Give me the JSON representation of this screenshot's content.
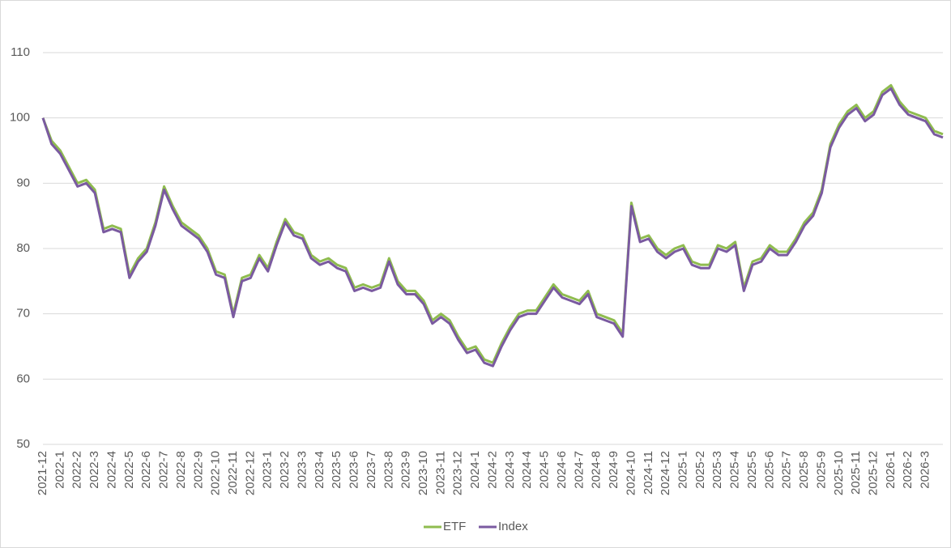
{
  "chart_data": {
    "type": "line",
    "categories": [
      "2021-12",
      null,
      "2022-1",
      null,
      "2022-2",
      null,
      "2022-3",
      null,
      "2022-4",
      null,
      "2022-5",
      null,
      "2022-6",
      null,
      "2022-7",
      null,
      "2022-8",
      null,
      "2022-9",
      null,
      "2022-10",
      null,
      "2022-11",
      null,
      "2022-12",
      null,
      "2023-1",
      null,
      "2023-2",
      null,
      "2023-3",
      null,
      "2023-4",
      null,
      "2023-5",
      null,
      "2023-6",
      null,
      "2023-7",
      null,
      "2023-8",
      null,
      "2023-9",
      null,
      "2023-10",
      null,
      "2023-11",
      null,
      "2023-12",
      null,
      "2024-1",
      null,
      "2024-2",
      null,
      "2024-3",
      null,
      "2024-4",
      null,
      "2024-5",
      null,
      "2024-6",
      null,
      "2024-7",
      null,
      "2024-8",
      null,
      "2024-9",
      null,
      "2024-10",
      null,
      "2024-11",
      null,
      "2024-12",
      null,
      "2025-1",
      null,
      "2025-2",
      null,
      "2025-3",
      null,
      "2025-4",
      null,
      "2025-5",
      null,
      "2025-6",
      null,
      "2025-7",
      null,
      "2025-8",
      null,
      "2025-9",
      null,
      "2025-10",
      null,
      "2025-11",
      null,
      "2025-12",
      null,
      "2026-1",
      null,
      "2026-2",
      null,
      "2026-3",
      null,
      null
    ],
    "series": [
      {
        "name": "ETF",
        "color": "#8fbc4f",
        "values": [
          100,
          96.5,
          95,
          92.5,
          90,
          90.5,
          89,
          83,
          83.5,
          83,
          76,
          78.5,
          80,
          84,
          89.5,
          86.5,
          84,
          83,
          82,
          80,
          76.5,
          76,
          70,
          75.5,
          76,
          79,
          77,
          81,
          84.5,
          82.5,
          82,
          79,
          78,
          78.5,
          77.5,
          77,
          74,
          74.5,
          74,
          74.5,
          78.5,
          75,
          73.5,
          73.5,
          72,
          69,
          70,
          69,
          66.5,
          64.5,
          65,
          63,
          62.5,
          65.5,
          68,
          70,
          70.5,
          70.5,
          72.5,
          74.5,
          73,
          72.5,
          72,
          73.5,
          70,
          69.5,
          69,
          67,
          87,
          81.5,
          82,
          80,
          79,
          80,
          80.5,
          78,
          77.5,
          77.5,
          80.5,
          80,
          81,
          74,
          78,
          78.5,
          80.5,
          79.5,
          79.5,
          81.5,
          84,
          85.5,
          89,
          96,
          99,
          101,
          102,
          100,
          101,
          104,
          105,
          102.5,
          101,
          100.5,
          100,
          98,
          97.5
        ]
      },
      {
        "name": "Index",
        "color": "#7a5aa0",
        "values": [
          100,
          96,
          94.5,
          92,
          89.5,
          90,
          88.5,
          82.5,
          83,
          82.5,
          75.5,
          78,
          79.5,
          83.5,
          89,
          86,
          83.5,
          82.5,
          81.5,
          79.5,
          76,
          75.5,
          69.5,
          75,
          75.5,
          78.5,
          76.5,
          80.5,
          84,
          82,
          81.5,
          78.5,
          77.5,
          78,
          77,
          76.5,
          73.5,
          74,
          73.5,
          74,
          78,
          74.5,
          73,
          73,
          71.5,
          68.5,
          69.5,
          68.5,
          66,
          64,
          64.5,
          62.5,
          62,
          65,
          67.5,
          69.5,
          70,
          70,
          72,
          74,
          72.5,
          72,
          71.5,
          73,
          69.5,
          69,
          68.5,
          66.5,
          86.5,
          81,
          81.5,
          79.5,
          78.5,
          79.5,
          80,
          77.5,
          77,
          77,
          80,
          79.5,
          80.5,
          73.5,
          77.5,
          78,
          80,
          79,
          79,
          81,
          83.5,
          85,
          88.5,
          95.5,
          98.5,
          100.5,
          101.5,
          99.5,
          100.5,
          103.5,
          104.5,
          102,
          100.5,
          100,
          99.5,
          97.5,
          97
        ]
      }
    ],
    "ylim": [
      50,
      110
    ],
    "yticks": [
      50,
      60,
      70,
      80,
      90,
      100,
      110
    ],
    "grid": true,
    "legend": "bottom"
  }
}
